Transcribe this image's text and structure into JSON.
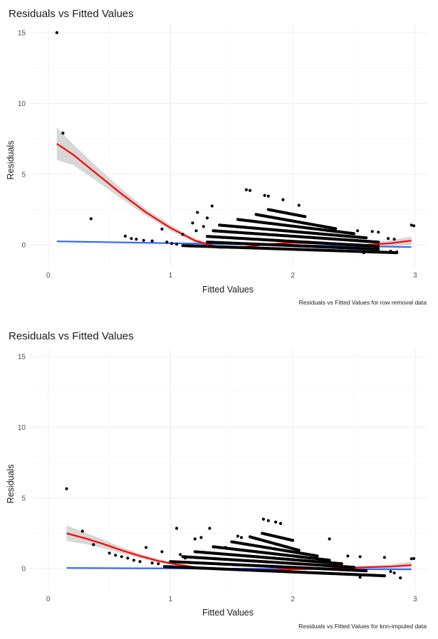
{
  "chart_data": [
    {
      "type": "scatter",
      "title": "Residuals vs Fitted Values",
      "xlabel": "Fitted Values",
      "ylabel": "Residuals",
      "caption": "Residuals vs Fitted Values for row removal data",
      "xlim": [
        -0.15,
        3.1
      ],
      "ylim": [
        -1.6,
        15.6
      ],
      "x_ticks": [
        "0",
        "1",
        "2",
        "3"
      ],
      "y_ticks": [
        "0",
        "5",
        "10",
        "15"
      ],
      "grid": true,
      "point_color": "#000000",
      "points": [
        [
          0.07,
          15.0
        ],
        [
          0.12,
          7.9
        ],
        [
          0.35,
          1.85
        ],
        [
          0.63,
          0.62
        ],
        [
          0.68,
          0.45
        ],
        [
          0.72,
          0.4
        ],
        [
          0.78,
          0.32
        ],
        [
          0.85,
          0.28
        ],
        [
          0.93,
          1.12
        ],
        [
          0.97,
          0.2
        ],
        [
          1.01,
          0.1
        ],
        [
          1.05,
          0.05
        ],
        [
          1.1,
          0.75
        ],
        [
          1.18,
          1.55
        ],
        [
          1.21,
          1.0
        ],
        [
          1.22,
          2.3
        ],
        [
          1.3,
          1.9
        ],
        [
          1.34,
          2.75
        ],
        [
          1.27,
          1.3
        ],
        [
          1.62,
          3.9
        ],
        [
          1.65,
          3.85
        ],
        [
          1.77,
          3.5
        ],
        [
          1.8,
          3.45
        ],
        [
          1.92,
          3.2
        ],
        [
          2.05,
          2.8
        ],
        [
          2.53,
          1.0
        ],
        [
          2.65,
          0.95
        ],
        [
          2.7,
          0.9
        ],
        [
          2.78,
          0.45
        ],
        [
          2.83,
          0.4
        ],
        [
          2.97,
          1.4
        ],
        [
          2.99,
          1.35
        ],
        [
          2.8,
          -0.45
        ],
        [
          2.85,
          -0.5
        ],
        [
          2.58,
          -0.55
        ]
      ],
      "bands": [
        {
          "x_start": 1.3,
          "x_end": 2.7,
          "y_start": 0.2,
          "y_end": -0.3
        },
        {
          "x_start": 1.3,
          "x_end": 2.7,
          "y_start": 0.6,
          "y_end": -0.1
        },
        {
          "x_start": 1.35,
          "x_end": 2.7,
          "y_start": 1.0,
          "y_end": 0.2
        },
        {
          "x_start": 1.4,
          "x_end": 2.6,
          "y_start": 1.4,
          "y_end": 0.5
        },
        {
          "x_start": 1.55,
          "x_end": 2.5,
          "y_start": 1.8,
          "y_end": 0.8
        },
        {
          "x_start": 1.7,
          "x_end": 2.35,
          "y_start": 2.15,
          "y_end": 1.15
        },
        {
          "x_start": 1.8,
          "x_end": 2.1,
          "y_start": 2.5,
          "y_end": 2.0
        },
        {
          "x_start": 1.1,
          "x_end": 2.85,
          "y_start": -0.05,
          "y_end": -0.55
        }
      ],
      "smooth_red": {
        "color": "#ff0000",
        "x": [
          0.07,
          0.2,
          0.4,
          0.6,
          0.8,
          1.0,
          1.2,
          1.4,
          1.6,
          1.8,
          2.0,
          2.2,
          2.4,
          2.6,
          2.8,
          2.97
        ],
        "y": [
          7.15,
          6.4,
          5.0,
          3.6,
          2.3,
          1.2,
          0.3,
          -0.2,
          -0.15,
          0.05,
          0.15,
          0.1,
          0.05,
          0.0,
          0.12,
          0.3
        ],
        "band": [
          1.15,
          0.75,
          0.5,
          0.35,
          0.25,
          0.2,
          0.15,
          0.12,
          0.1,
          0.08,
          0.08,
          0.08,
          0.1,
          0.15,
          0.2,
          0.3
        ]
      },
      "smooth_blue": {
        "color": "#3366ff",
        "x": [
          0.07,
          2.97
        ],
        "y": [
          0.25,
          -0.15
        ]
      }
    },
    {
      "type": "scatter",
      "title": "Residuals vs Fitted Values",
      "xlabel": "Fitted Values",
      "ylabel": "Residuals",
      "caption": "Residuals vs Fitted Values for knn-imputed data",
      "xlim": [
        -0.15,
        3.1
      ],
      "ylim": [
        -1.6,
        15.6
      ],
      "x_ticks": [
        "0",
        "1",
        "2",
        "3"
      ],
      "y_ticks": [
        "0",
        "5",
        "10",
        "15"
      ],
      "grid": true,
      "point_color": "#000000",
      "points": [
        [
          0.15,
          5.65
        ],
        [
          0.28,
          2.65
        ],
        [
          0.37,
          1.7
        ],
        [
          0.5,
          1.1
        ],
        [
          0.55,
          0.95
        ],
        [
          0.6,
          0.85
        ],
        [
          0.65,
          0.75
        ],
        [
          0.7,
          0.6
        ],
        [
          0.75,
          0.5
        ],
        [
          0.8,
          1.5
        ],
        [
          0.85,
          0.4
        ],
        [
          0.9,
          0.35
        ],
        [
          0.93,
          1.2
        ],
        [
          1.05,
          2.85
        ],
        [
          1.08,
          1.0
        ],
        [
          1.12,
          0.75
        ],
        [
          1.2,
          2.1
        ],
        [
          1.25,
          2.2
        ],
        [
          1.32,
          2.85
        ],
        [
          1.45,
          1.5
        ],
        [
          1.55,
          2.3
        ],
        [
          1.58,
          2.2
        ],
        [
          1.76,
          3.5
        ],
        [
          1.8,
          3.4
        ],
        [
          1.86,
          3.3
        ],
        [
          1.9,
          3.2
        ],
        [
          2.3,
          2.1
        ],
        [
          2.45,
          0.9
        ],
        [
          2.55,
          0.85
        ],
        [
          2.75,
          0.8
        ],
        [
          2.8,
          -0.2
        ],
        [
          2.83,
          -0.3
        ],
        [
          2.88,
          -0.65
        ],
        [
          2.97,
          0.7
        ],
        [
          2.99,
          0.72
        ],
        [
          2.55,
          -0.6
        ]
      ],
      "bands": [
        {
          "x_start": 1.0,
          "x_end": 2.6,
          "y_start": 0.5,
          "y_end": -0.15
        },
        {
          "x_start": 1.1,
          "x_end": 2.5,
          "y_start": 0.85,
          "y_end": 0.1
        },
        {
          "x_start": 1.2,
          "x_end": 2.4,
          "y_start": 1.2,
          "y_end": 0.35
        },
        {
          "x_start": 1.35,
          "x_end": 2.3,
          "y_start": 1.55,
          "y_end": 0.6
        },
        {
          "x_start": 1.5,
          "x_end": 2.2,
          "y_start": 1.9,
          "y_end": 0.9
        },
        {
          "x_start": 1.65,
          "x_end": 2.05,
          "y_start": 2.25,
          "y_end": 1.3
        },
        {
          "x_start": 1.75,
          "x_end": 2.0,
          "y_start": 2.5,
          "y_end": 2.0
        },
        {
          "x_start": 0.95,
          "x_end": 2.75,
          "y_start": 0.15,
          "y_end": -0.5
        }
      ],
      "smooth_red": {
        "color": "#ff0000",
        "x": [
          0.15,
          0.3,
          0.45,
          0.6,
          0.75,
          0.9,
          1.05,
          1.2,
          1.4,
          1.6,
          1.8,
          2.0,
          2.2,
          2.4,
          2.6,
          2.8,
          2.97
        ],
        "y": [
          2.5,
          2.15,
          1.75,
          1.3,
          0.9,
          0.55,
          0.3,
          0.1,
          -0.05,
          -0.12,
          -0.1,
          -0.05,
          0.0,
          0.05,
          0.1,
          0.15,
          0.25
        ],
        "band": [
          0.55,
          0.4,
          0.3,
          0.22,
          0.16,
          0.12,
          0.1,
          0.08,
          0.07,
          0.06,
          0.06,
          0.06,
          0.07,
          0.08,
          0.1,
          0.15,
          0.25
        ]
      },
      "smooth_blue": {
        "color": "#3366ff",
        "x": [
          0.15,
          2.97
        ],
        "y": [
          0.05,
          -0.05
        ]
      }
    }
  ]
}
